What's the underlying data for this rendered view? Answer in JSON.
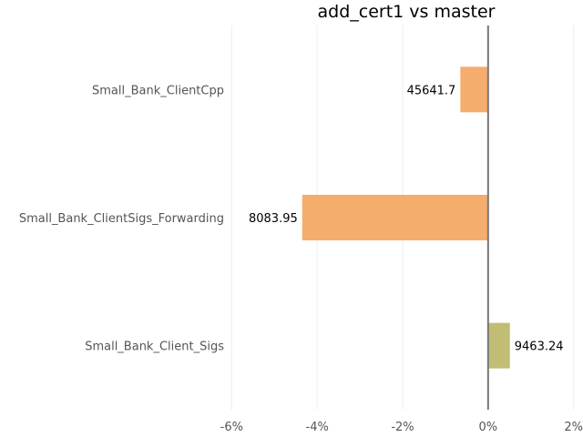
{
  "chart_data": {
    "type": "bar",
    "orientation": "horizontal",
    "title": "add_cert1 vs master",
    "xlabel": "",
    "ylabel": "",
    "xlim": [
      -0.0605,
      0.0205
    ],
    "xticks": [
      -0.06,
      -0.04,
      -0.02,
      0,
      0.02
    ],
    "xtick_labels": [
      "-6%",
      "-4%",
      "-2%",
      "0%",
      "2%"
    ],
    "grid": true,
    "legend": "none",
    "categories": [
      "Small_Bank_ClientCpp",
      "Small_Bank_ClientSigs_Forwarding",
      "Small_Bank_Client_Sigs"
    ],
    "values": [
      -0.0065,
      -0.0435,
      0.0051
    ],
    "labels": [
      "45641.7",
      "8083.95",
      "9463.24"
    ],
    "colors": [
      "#f5ad6e",
      "#f5ad6e",
      "#c2bd75"
    ]
  }
}
